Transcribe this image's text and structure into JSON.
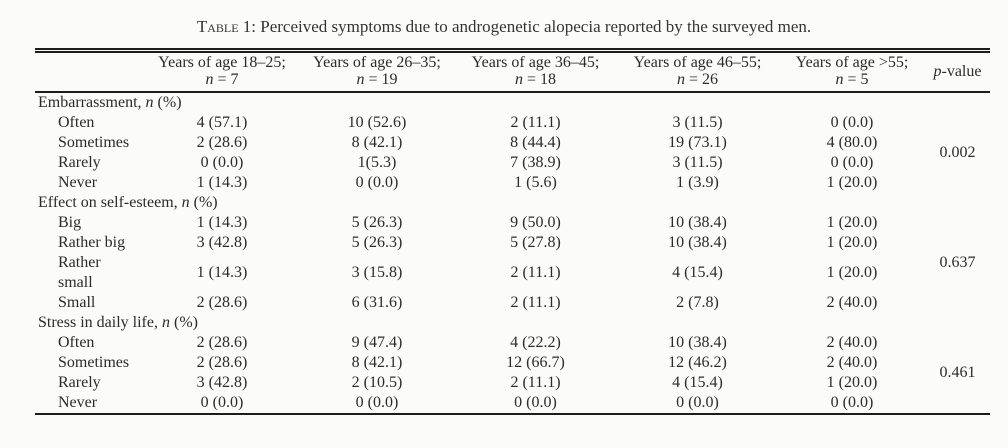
{
  "caption": {
    "label": "Table 1:",
    "text": " Perceived symptoms due to androgenetic alopecia reported by the surveyed men."
  },
  "header": {
    "age_columns": [
      {
        "range": "Years of age 18–25;",
        "n": "n",
        "eq": " = 7"
      },
      {
        "range": "Years of age 26–35;",
        "n": "n",
        "eq": " = 19"
      },
      {
        "range": "Years of age 36–45;",
        "n": "n",
        "eq": " = 18"
      },
      {
        "range": "Years of age 46–55;",
        "n": "n",
        "eq": " = 26"
      },
      {
        "range": "Years of age >55;",
        "n": "n",
        "eq": " = 5"
      }
    ],
    "p": {
      "p": "p",
      "rest": "-value"
    }
  },
  "sections": [
    {
      "header": {
        "pre": "Embarrassment, ",
        "n": "n",
        "post": " (%)"
      },
      "p_value": "0.002",
      "rows": [
        {
          "label": "Often",
          "values": [
            "4 (57.1)",
            "10 (52.6)",
            "2 (11.1)",
            "3 (11.5)",
            "0 (0.0)"
          ]
        },
        {
          "label": "Sometimes",
          "values": [
            "2 (28.6)",
            "8 (42.1)",
            "8 (44.4)",
            "19 (73.1)",
            "4 (80.0)"
          ]
        },
        {
          "label": "Rarely",
          "values": [
            "0 (0.0)",
            "1(5.3)",
            "7 (38.9)",
            "3 (11.5)",
            "0 (0.0)"
          ]
        },
        {
          "label": "Never",
          "values": [
            "1 (14.3)",
            "0 (0.0)",
            "1 (5.6)",
            "1 (3.9)",
            "1 (20.0)"
          ]
        }
      ]
    },
    {
      "header": {
        "pre": "Effect on self-esteem, ",
        "n": "n",
        "post": " (%)"
      },
      "p_value": "0.637",
      "rows": [
        {
          "label": "Big",
          "values": [
            "1 (14.3)",
            "5 (26.3)",
            "9 (50.0)",
            "10 (38.4)",
            "1 (20.0)"
          ]
        },
        {
          "label": "Rather big",
          "values": [
            "3 (42.8)",
            "5 (26.3)",
            "5 (27.8)",
            "10 (38.4)",
            "1 (20.0)"
          ]
        },
        {
          "label": "Rather\nsmall",
          "values": [
            "1 (14.3)",
            "3 (15.8)",
            "2 (11.1)",
            "4 (15.4)",
            "1 (20.0)"
          ]
        },
        {
          "label": "Small",
          "values": [
            "2 (28.6)",
            "6 (31.6)",
            "2 (11.1)",
            "2 (7.8)",
            "2 (40.0)"
          ]
        }
      ]
    },
    {
      "header": {
        "pre": "Stress in daily life, ",
        "n": "n",
        "post": " (%)"
      },
      "p_value": "0.461",
      "rows": [
        {
          "label": "Often",
          "values": [
            "2 (28.6)",
            "9 (47.4)",
            "4 (22.2)",
            "10 (38.4)",
            "2 (40.0)"
          ]
        },
        {
          "label": "Sometimes",
          "values": [
            "2 (28.6)",
            "8 (42.1)",
            "12 (66.7)",
            "12 (46.2)",
            "2 (40.0)"
          ]
        },
        {
          "label": "Rarely",
          "values": [
            "3 (42.8)",
            "2 (10.5)",
            "2 (11.1)",
            "4 (15.4)",
            "1 (20.0)"
          ]
        },
        {
          "label": "Never",
          "values": [
            "0 (0.0)",
            "0 (0.0)",
            "0 (0.0)",
            "0 (0.0)",
            "0 (0.0)"
          ]
        }
      ]
    }
  ]
}
